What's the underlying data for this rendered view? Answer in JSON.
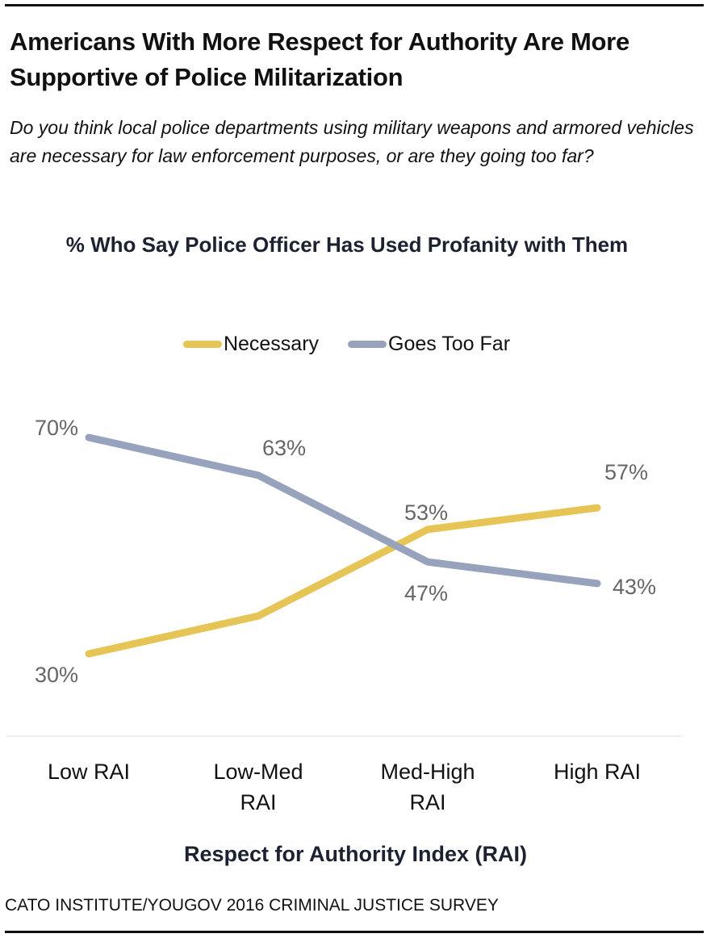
{
  "header": {
    "title": "Americans With More Respect for Authority Are More Supportive of Police Militarization",
    "subtitle": "Do you think local police departments using military weapons and armored vehicles are necessary for law enforcement purposes, or are they going too far?"
  },
  "colors": {
    "necessary": "#e6c556",
    "goes_too_far": "#97a3bd",
    "label_gray": "#666666"
  },
  "footer": {
    "source": "CATO INSTITUTE/YOUGOV 2016 CRIMINAL JUSTICE SURVEY"
  },
  "chart_data": {
    "type": "line",
    "title": "% Who Say Police Officer Has Used Profanity with Them",
    "xlabel": "Respect for Authority Index (RAI)",
    "ylabel": "",
    "categories": [
      "Low RAI",
      "Low-Med RAI",
      "Med-High RAI",
      "High RAI"
    ],
    "category_lines": [
      [
        "Low RAI"
      ],
      [
        "Low-Med",
        "RAI"
      ],
      [
        "Med-High",
        "RAI"
      ],
      [
        "High RAI"
      ]
    ],
    "series": [
      {
        "name": "Necessary",
        "values": [
          30,
          37,
          53,
          57
        ],
        "labels": [
          "30%",
          "",
          "53%",
          "57%"
        ]
      },
      {
        "name": "Goes Too Far",
        "values": [
          70,
          63,
          47,
          43
        ],
        "labels": [
          "70%",
          "63%",
          "47%",
          "43%"
        ]
      }
    ],
    "legend": {
      "position": "top-center",
      "entries": [
        "Necessary",
        "Goes Too Far"
      ]
    },
    "grid": false,
    "ylim": [
      30,
      70
    ]
  }
}
